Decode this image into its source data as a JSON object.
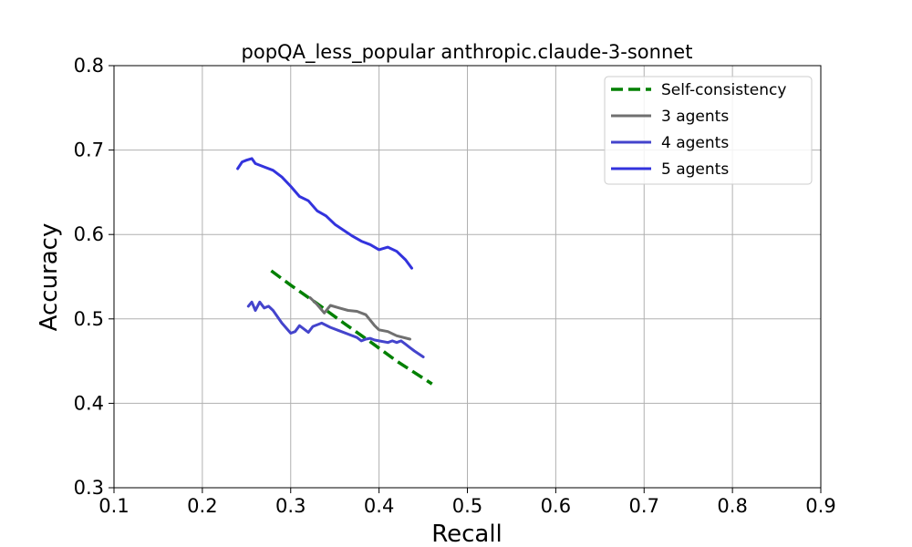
{
  "chart_data": {
    "type": "line",
    "title": "popQA_less_popular anthropic.claude-3-sonnet",
    "xlabel": "Recall",
    "ylabel": "Accuracy",
    "xlim": [
      0.1,
      0.9
    ],
    "ylim": [
      0.3,
      0.8
    ],
    "xticks": [
      "0.1",
      "0.2",
      "0.3",
      "0.4",
      "0.5",
      "0.6",
      "0.7",
      "0.8",
      "0.9"
    ],
    "yticks": [
      "0.3",
      "0.4",
      "0.5",
      "0.6",
      "0.7",
      "0.8"
    ],
    "grid": true,
    "legend_position": "top-right",
    "series": [
      {
        "name": "Self-consistency",
        "color": "#008000",
        "style": "dashed",
        "x": [
          0.278,
          0.3,
          0.33,
          0.36,
          0.39,
          0.42,
          0.46
        ],
        "y": [
          0.557,
          0.54,
          0.518,
          0.495,
          0.473,
          0.45,
          0.423
        ]
      },
      {
        "name": "3 agents",
        "color": "#707070",
        "style": "solid",
        "x": [
          0.322,
          0.33,
          0.338,
          0.345,
          0.355,
          0.365,
          0.375,
          0.385,
          0.395,
          0.4,
          0.41,
          0.42,
          0.435
        ],
        "y": [
          0.525,
          0.517,
          0.507,
          0.516,
          0.513,
          0.51,
          0.509,
          0.505,
          0.492,
          0.487,
          0.485,
          0.48,
          0.476
        ]
      },
      {
        "name": "4 agents",
        "color": "#4444cc",
        "style": "solid",
        "x": [
          0.252,
          0.256,
          0.26,
          0.265,
          0.27,
          0.275,
          0.28,
          0.29,
          0.3,
          0.305,
          0.31,
          0.32,
          0.325,
          0.335,
          0.345,
          0.355,
          0.365,
          0.375,
          0.38,
          0.385,
          0.39,
          0.395,
          0.4,
          0.41,
          0.415,
          0.42,
          0.425,
          0.43,
          0.435,
          0.44,
          0.45
        ],
        "y": [
          0.515,
          0.52,
          0.51,
          0.52,
          0.513,
          0.515,
          0.51,
          0.495,
          0.483,
          0.485,
          0.492,
          0.484,
          0.491,
          0.495,
          0.49,
          0.486,
          0.482,
          0.478,
          0.474,
          0.476,
          0.477,
          0.475,
          0.474,
          0.472,
          0.474,
          0.472,
          0.474,
          0.47,
          0.466,
          0.462,
          0.455
        ]
      },
      {
        "name": "5 agents",
        "color": "#3333dd",
        "style": "solid",
        "x": [
          0.24,
          0.245,
          0.25,
          0.256,
          0.26,
          0.27,
          0.28,
          0.29,
          0.3,
          0.31,
          0.32,
          0.33,
          0.34,
          0.35,
          0.36,
          0.37,
          0.38,
          0.39,
          0.4,
          0.41,
          0.42,
          0.43,
          0.437
        ],
        "y": [
          0.678,
          0.686,
          0.688,
          0.69,
          0.684,
          0.68,
          0.676,
          0.668,
          0.657,
          0.645,
          0.64,
          0.628,
          0.622,
          0.612,
          0.605,
          0.598,
          0.592,
          0.588,
          0.582,
          0.585,
          0.58,
          0.57,
          0.56
        ]
      }
    ]
  }
}
